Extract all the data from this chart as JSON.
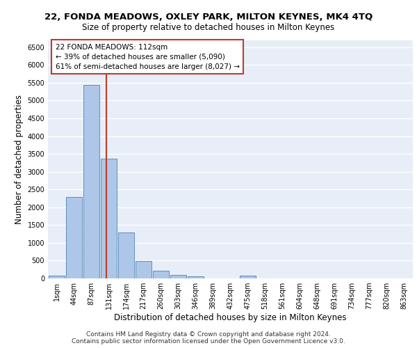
{
  "title_line1": "22, FONDA MEADOWS, OXLEY PARK, MILTON KEYNES, MK4 4TQ",
  "title_line2": "Size of property relative to detached houses in Milton Keynes",
  "xlabel": "Distribution of detached houses by size in Milton Keynes",
  "ylabel": "Number of detached properties",
  "categories": [
    "1sqm",
    "44sqm",
    "87sqm",
    "131sqm",
    "174sqm",
    "217sqm",
    "260sqm",
    "303sqm",
    "346sqm",
    "389sqm",
    "432sqm",
    "475sqm",
    "518sqm",
    "561sqm",
    "604sqm",
    "648sqm",
    "691sqm",
    "734sqm",
    "777sqm",
    "820sqm",
    "863sqm"
  ],
  "values": [
    75,
    2280,
    5430,
    3370,
    1290,
    480,
    215,
    105,
    55,
    0,
    0,
    75,
    0,
    0,
    0,
    0,
    0,
    0,
    0,
    0,
    0
  ],
  "bar_color": "#aec6e8",
  "bar_edge_color": "#5a8fc0",
  "vline_x": 2.85,
  "vline_color": "#c0392b",
  "annotation_text": "22 FONDA MEADOWS: 112sqm\n← 39% of detached houses are smaller (5,090)\n61% of semi-detached houses are larger (8,027) →",
  "annotation_box_color": "white",
  "annotation_box_edge": "#c0392b",
  "ylim": [
    0,
    6700
  ],
  "yticks": [
    0,
    500,
    1000,
    1500,
    2000,
    2500,
    3000,
    3500,
    4000,
    4500,
    5000,
    5500,
    6000,
    6500
  ],
  "background_color": "#e8eef7",
  "grid_color": "white",
  "footer_line1": "Contains HM Land Registry data © Crown copyright and database right 2024.",
  "footer_line2": "Contains public sector information licensed under the Open Government Licence v3.0.",
  "title_fontsize": 9.5,
  "subtitle_fontsize": 8.5,
  "axis_label_fontsize": 8.5,
  "tick_fontsize": 7,
  "annotation_fontsize": 7.5,
  "footer_fontsize": 6.5
}
